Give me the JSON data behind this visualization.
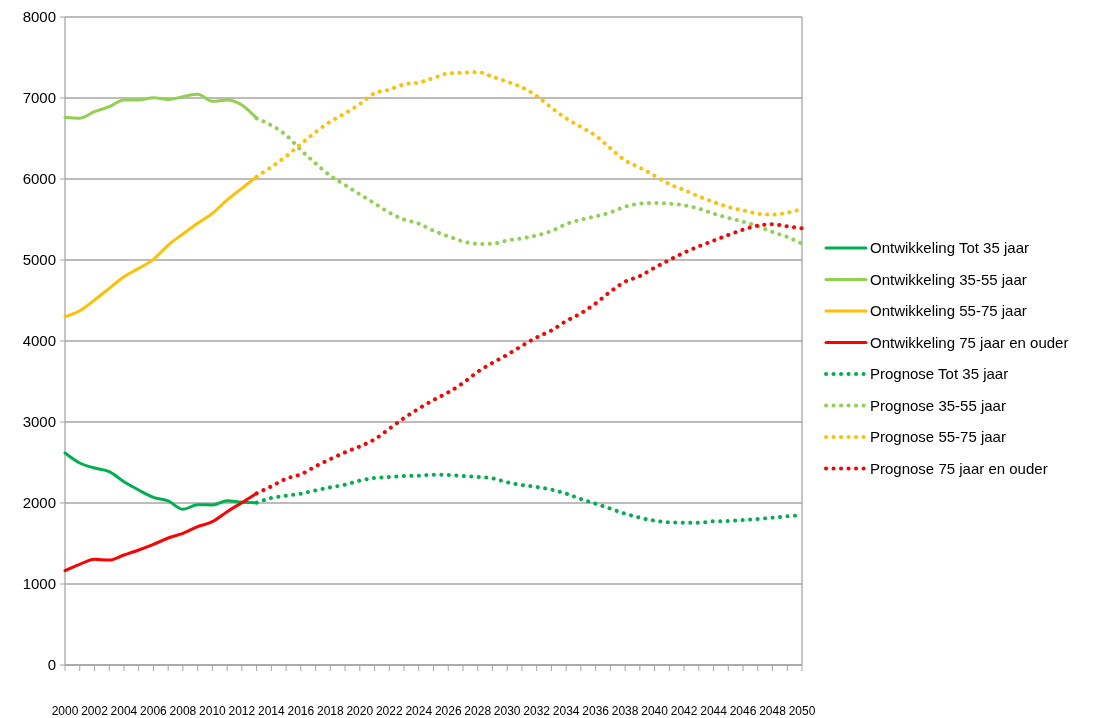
{
  "chart_data": {
    "type": "line",
    "categories": [
      "2000",
      null,
      "2002",
      null,
      "2004",
      null,
      "2006",
      null,
      "2008",
      null,
      "2010",
      null,
      "2012",
      null,
      "2014",
      null,
      "2016",
      null,
      "2018",
      null,
      "2020",
      null,
      "2022",
      null,
      "2024",
      null,
      "2026",
      null,
      "2028",
      null,
      "2030",
      null,
      "2032",
      null,
      "2034",
      null,
      "2036",
      null,
      "2038",
      null,
      "2040",
      null,
      "2042",
      null,
      "2044",
      null,
      "2046",
      null,
      "2048",
      null,
      "2050"
    ],
    "ylim": [
      0,
      8000
    ],
    "yticks": [
      0,
      1000,
      2000,
      3000,
      4000,
      5000,
      6000,
      7000,
      8000
    ],
    "grid": "y",
    "legend": "right",
    "series": [
      {
        "name": "Ontwikkeling Tot 35 jaar",
        "color": "#00b050",
        "line_style": "solid",
        "values": [
          2617,
          2494,
          2432,
          2386,
          2263,
          2160,
          2070,
          2025,
          1922,
          1979,
          1975,
          2028,
          2008,
          2004,
          null,
          null,
          null,
          null,
          null,
          null,
          null,
          null,
          null,
          null,
          null,
          null,
          null,
          null,
          null,
          null,
          null,
          null,
          null,
          null,
          null,
          null,
          null,
          null,
          null,
          null,
          null,
          null,
          null,
          null,
          null,
          null,
          null,
          null,
          null,
          null,
          null
        ]
      },
      {
        "name": "Ontwikkeling 35-55 jaar",
        "color": "#92d050",
        "line_style": "solid",
        "values": [
          6762,
          6750,
          6831,
          6893,
          6975,
          6975,
          7004,
          6983,
          7016,
          7045,
          6959,
          6975,
          6914,
          6749,
          null,
          null,
          null,
          null,
          null,
          null,
          null,
          null,
          null,
          null,
          null,
          null,
          null,
          null,
          null,
          null,
          null,
          null,
          null,
          null,
          null,
          null,
          null,
          null,
          null,
          null,
          null,
          null,
          null,
          null,
          null,
          null,
          null,
          null,
          null,
          null,
          null
        ]
      },
      {
        "name": "Ontwikkeling 55-75 jaar",
        "color": "#ffc000",
        "line_style": "solid",
        "values": [
          4300,
          4374,
          4506,
          4650,
          4794,
          4897,
          5008,
          5185,
          5321,
          5453,
          5576,
          5741,
          5885,
          6029,
          null,
          null,
          null,
          null,
          null,
          null,
          null,
          null,
          null,
          null,
          null,
          null,
          null,
          null,
          null,
          null,
          null,
          null,
          null,
          null,
          null,
          null,
          null,
          null,
          null,
          null,
          null,
          null,
          null,
          null,
          null,
          null,
          null,
          null,
          null,
          null,
          null
        ]
      },
      {
        "name": "Ontwikkeling 75 jaar en ouder",
        "color": "#ff0000",
        "line_style": "solid",
        "values": [
          1165,
          1243,
          1305,
          1296,
          1358,
          1420,
          1490,
          1568,
          1626,
          1708,
          1770,
          1893,
          2004,
          2119,
          null,
          null,
          null,
          null,
          null,
          null,
          null,
          null,
          null,
          null,
          null,
          null,
          null,
          null,
          null,
          null,
          null,
          null,
          null,
          null,
          null,
          null,
          null,
          null,
          null,
          null,
          null,
          null,
          null,
          null,
          null,
          null,
          null,
          null,
          null,
          null,
          null
        ]
      },
      {
        "name": "Prognose Tot 35 jaar",
        "color": "#00b050",
        "line_style": "dotted",
        "values": [
          null,
          null,
          null,
          null,
          null,
          null,
          null,
          null,
          null,
          null,
          null,
          null,
          null,
          2004,
          2062,
          2090,
          2115,
          2156,
          2193,
          2226,
          2276,
          2309,
          2321,
          2333,
          2337,
          2349,
          2346,
          2333,
          2321,
          2305,
          2255,
          2222,
          2198,
          2165,
          2115,
          2049,
          1991,
          1930,
          1868,
          1819,
          1782,
          1761,
          1757,
          1757,
          1774,
          1778,
          1790,
          1802,
          1819,
          1835,
          1852
        ]
      },
      {
        "name": "Prognose 35-55 jaar",
        "color": "#92d050",
        "line_style": "dotted",
        "values": [
          null,
          null,
          null,
          null,
          null,
          null,
          null,
          null,
          null,
          null,
          null,
          null,
          null,
          6749,
          6663,
          6540,
          6358,
          6193,
          6040,
          5926,
          5811,
          5700,
          5585,
          5500,
          5449,
          5362,
          5292,
          5230,
          5198,
          5202,
          5240,
          5267,
          5304,
          5358,
          5444,
          5498,
          5539,
          5588,
          5658,
          5695,
          5704,
          5695,
          5675,
          5634,
          5572,
          5519,
          5473,
          5416,
          5346,
          5284,
          5202
        ]
      },
      {
        "name": "Prognose 55-75 jaar",
        "color": "#ffc000",
        "line_style": "dotted",
        "values": [
          null,
          null,
          null,
          null,
          null,
          null,
          null,
          null,
          null,
          null,
          null,
          null,
          null,
          6029,
          6148,
          6280,
          6432,
          6580,
          6708,
          6810,
          6926,
          7058,
          7103,
          7169,
          7190,
          7247,
          7304,
          7312,
          7321,
          7263,
          7201,
          7132,
          7025,
          6881,
          6749,
          6642,
          6535,
          6379,
          6230,
          6140,
          6041,
          5938,
          5864,
          5786,
          5716,
          5654,
          5613,
          5572,
          5560,
          5585,
          5630
        ]
      },
      {
        "name": "Prognose 75 jaar en ouder",
        "color": "#ff0000",
        "line_style": "dotted",
        "values": [
          null,
          null,
          null,
          null,
          null,
          null,
          null,
          null,
          null,
          null,
          null,
          null,
          null,
          2119,
          2206,
          2300,
          2354,
          2453,
          2543,
          2625,
          2699,
          2786,
          2917,
          3049,
          3165,
          3272,
          3366,
          3481,
          3620,
          3730,
          3830,
          3940,
          4045,
          4130,
          4247,
          4342,
          4465,
          4609,
          4733,
          4802,
          4905,
          5000,
          5091,
          5169,
          5239,
          5309,
          5374,
          5424,
          5441,
          5416,
          5391
        ]
      }
    ]
  }
}
